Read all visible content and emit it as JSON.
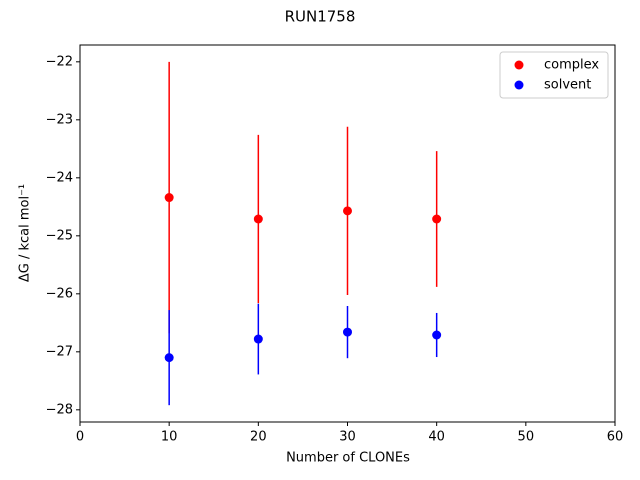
{
  "chart_data": {
    "type": "errorbar-scatter",
    "title": "RUN1758",
    "x_label": "Number of CLONEs",
    "y_label": "ΔG / kcal mol⁻¹",
    "xlim": [
      0,
      60
    ],
    "xticks": [
      0,
      10,
      20,
      30,
      40,
      50,
      60
    ],
    "ylim": [
      -28.21,
      -21.71
    ],
    "yticks": [
      {
        "value": -28,
        "label": "−28"
      },
      {
        "value": -27,
        "label": "−27"
      },
      {
        "value": -26,
        "label": "−26"
      },
      {
        "value": -25,
        "label": "−25"
      },
      {
        "value": -24,
        "label": "−24"
      },
      {
        "value": -23,
        "label": "−23"
      },
      {
        "value": -22,
        "label": "−22"
      }
    ],
    "legend": "upper right",
    "series": [
      {
        "name": "complex",
        "color": "#ff0000",
        "x": [
          10,
          20,
          30,
          40
        ],
        "values": [
          -24.34,
          -24.71,
          -24.57,
          -24.71
        ],
        "errors": [
          2.34,
          1.45,
          1.45,
          1.17
        ]
      },
      {
        "name": "solvent",
        "color": "#0000ff",
        "x": [
          10,
          20,
          30,
          40
        ],
        "values": [
          -27.1,
          -26.78,
          -26.66,
          -26.71
        ],
        "errors": [
          0.82,
          0.61,
          0.45,
          0.38
        ]
      }
    ]
  }
}
